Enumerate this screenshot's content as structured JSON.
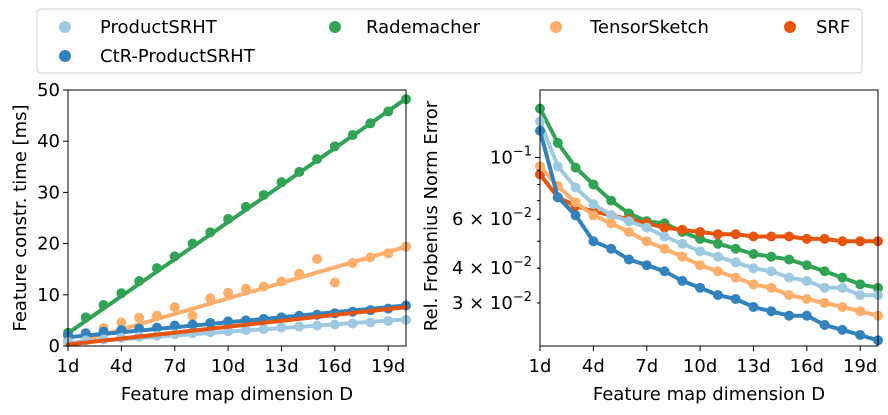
{
  "legend": {
    "items": [
      {
        "label": "ProductSRHT",
        "color": "#9ecae1"
      },
      {
        "label": "Rademacher",
        "color": "#31a354"
      },
      {
        "label": "TensorSketch",
        "color": "#fdae6b"
      },
      {
        "label": "SRF",
        "color": "#e6550d"
      },
      {
        "label": "CtR-ProductSRHT",
        "color": "#3182bd"
      }
    ]
  },
  "chart_data": [
    {
      "type": "line",
      "title": "",
      "xlabel": "Feature map dimension D",
      "ylabel": "Feature constr. time [ms]",
      "xlim": [
        1,
        20
      ],
      "ylim": [
        0,
        50
      ],
      "yscale": "linear",
      "xticks": [
        1,
        4,
        7,
        10,
        13,
        16,
        19
      ],
      "xtick_labels": [
        "1d",
        "4d",
        "7d",
        "10d",
        "13d",
        "16d",
        "19d"
      ],
      "yticks": [
        0,
        10,
        20,
        30,
        40,
        50
      ],
      "ytick_labels": [
        "0",
        "10",
        "20",
        "30",
        "40",
        "50"
      ],
      "x": [
        1,
        2,
        3,
        4,
        5,
        6,
        7,
        8,
        9,
        10,
        11,
        12,
        13,
        14,
        15,
        16,
        17,
        18,
        19,
        20
      ],
      "series": [
        {
          "name": "Rademacher",
          "color": "#31a354",
          "points": [
            2.6,
            5.6,
            8.0,
            10.3,
            12.7,
            15.2,
            17.5,
            20.0,
            22.2,
            24.8,
            27.2,
            29.5,
            32.0,
            34.0,
            36.5,
            39.0,
            41.2,
            43.5,
            45.8,
            48.2
          ],
          "fit": [
            2.5,
            48.3
          ]
        },
        {
          "name": "TensorSketch",
          "color": "#fdae6b",
          "points": [
            1.0,
            2.2,
            3.5,
            4.6,
            5.5,
            5.9,
            7.6,
            5.9,
            9.3,
            10.4,
            11.2,
            11.6,
            12.6,
            14.1,
            17.0,
            12.4,
            16.2,
            17.3,
            18.1,
            19.4
          ],
          "fit": [
            0.2,
            19.4
          ]
        },
        {
          "name": "CtR-ProductSRHT",
          "color": "#3182bd",
          "points": [
            2.1,
            2.5,
            2.8,
            3.1,
            3.4,
            3.6,
            4.0,
            4.2,
            4.5,
            4.8,
            5.0,
            5.3,
            5.6,
            5.9,
            6.1,
            6.4,
            6.7,
            7.0,
            7.3,
            7.9
          ],
          "fit": [
            1.7,
            7.9
          ]
        },
        {
          "name": "ProductSRHT",
          "color": "#9ecae1",
          "points": [
            0.8,
            1.1,
            1.3,
            1.6,
            1.8,
            2.0,
            2.3,
            2.5,
            2.7,
            2.9,
            3.1,
            3.3,
            3.6,
            3.8,
            4.0,
            4.2,
            4.4,
            4.6,
            4.9,
            5.1
          ],
          "fit": [
            0.6,
            5.2
          ]
        },
        {
          "name": "SRF",
          "color": "#e6550d",
          "points": [],
          "fit": [
            0.3,
            7.6
          ]
        }
      ]
    },
    {
      "type": "line",
      "title": "",
      "xlabel": "Feature map dimension D",
      "ylabel": "Rel. Frobenius Norm Error",
      "xlim": [
        1,
        20
      ],
      "ylim": [
        0.021,
        0.175
      ],
      "yscale": "log",
      "xticks": [
        1,
        4,
        7,
        10,
        13,
        16,
        19
      ],
      "xtick_labels": [
        "1d",
        "4d",
        "7d",
        "10d",
        "13d",
        "16d",
        "19d"
      ],
      "yticks": [
        0.1,
        0.06,
        0.04,
        0.03
      ],
      "ytick_labels": [
        "10^{-1}",
        "6 × 10^{-2}",
        "4 × 10^{-2}",
        "3 × 10^{-2}"
      ],
      "x": [
        1,
        2,
        3,
        4,
        5,
        6,
        7,
        8,
        9,
        10,
        11,
        12,
        13,
        14,
        15,
        16,
        17,
        18,
        19,
        20
      ],
      "series": [
        {
          "name": "Rademacher",
          "color": "#31a354",
          "values": [
            0.15,
            0.113,
            0.092,
            0.08,
            0.07,
            0.063,
            0.059,
            0.058,
            0.054,
            0.051,
            0.049,
            0.047,
            0.045,
            0.044,
            0.043,
            0.041,
            0.039,
            0.037,
            0.035,
            0.034
          ]
        },
        {
          "name": "SRF",
          "color": "#e6550d",
          "values": [
            0.087,
            0.072,
            0.067,
            0.064,
            0.062,
            0.06,
            0.058,
            0.056,
            0.055,
            0.054,
            0.053,
            0.053,
            0.052,
            0.052,
            0.052,
            0.051,
            0.051,
            0.05,
            0.05,
            0.05
          ]
        },
        {
          "name": "ProductSRHT",
          "color": "#9ecae1",
          "values": [
            0.135,
            0.093,
            0.078,
            0.068,
            0.062,
            0.059,
            0.056,
            0.052,
            0.049,
            0.046,
            0.044,
            0.042,
            0.04,
            0.039,
            0.037,
            0.036,
            0.034,
            0.034,
            0.032,
            0.032
          ]
        },
        {
          "name": "TensorSketch",
          "color": "#fdae6b",
          "values": [
            0.093,
            0.079,
            0.069,
            0.062,
            0.058,
            0.054,
            0.05,
            0.047,
            0.044,
            0.041,
            0.039,
            0.037,
            0.035,
            0.034,
            0.032,
            0.031,
            0.03,
            0.029,
            0.028,
            0.027
          ]
        },
        {
          "name": "CtR-ProductSRHT",
          "color": "#3182bd",
          "values": [
            0.125,
            0.072,
            0.062,
            0.05,
            0.047,
            0.043,
            0.041,
            0.039,
            0.036,
            0.034,
            0.032,
            0.031,
            0.029,
            0.028,
            0.027,
            0.027,
            0.025,
            0.024,
            0.023,
            0.022
          ]
        }
      ]
    }
  ]
}
